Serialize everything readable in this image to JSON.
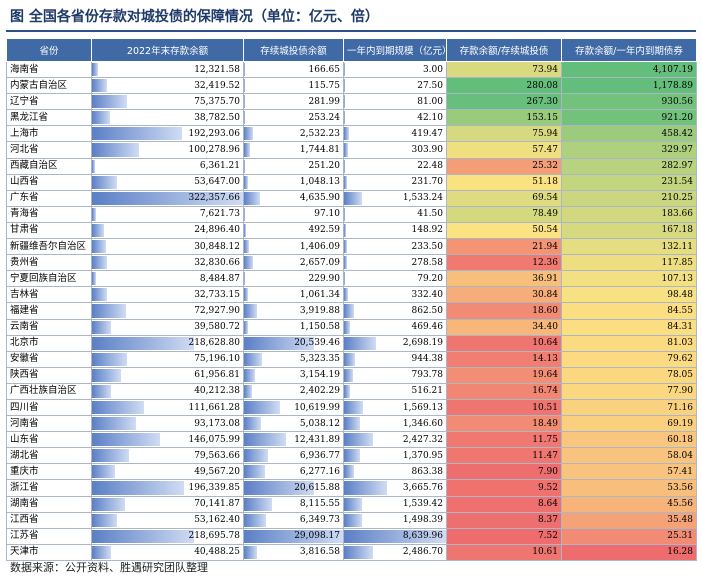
{
  "title": "图  全国各省份存款对城投债的保障情况（单位：亿元、倍）",
  "source": "数据来源：公开资料、胜遇研究团队整理",
  "headers": [
    "省份",
    "2022年末存款余额",
    "存续城投债余额",
    "一年内到期规模（亿元）",
    "存款余额/存续城投债",
    "存款余额/一年内到期债券"
  ],
  "rows": [
    {
      "province": "海南省",
      "deposit": "12,321.58",
      "debt": "166.65",
      "due": "3.00",
      "ratio1": "73.94",
      "ratio2": "4,107.19",
      "d": 12321.58,
      "b": 166.65,
      "u": 3.0,
      "r1": 73.94,
      "r2": 4107.19
    },
    {
      "province": "内蒙古自治区",
      "deposit": "32,419.52",
      "debt": "115.75",
      "due": "27.50",
      "ratio1": "280.08",
      "ratio2": "1,178.89",
      "d": 32419.52,
      "b": 115.75,
      "u": 27.5,
      "r1": 280.08,
      "r2": 1178.89
    },
    {
      "province": "辽宁省",
      "deposit": "75,375.70",
      "debt": "281.99",
      "due": "81.00",
      "ratio1": "267.30",
      "ratio2": "930.56",
      "d": 75375.7,
      "b": 281.99,
      "u": 81.0,
      "r1": 267.3,
      "r2": 930.56
    },
    {
      "province": "黑龙江省",
      "deposit": "38,782.50",
      "debt": "253.24",
      "due": "42.10",
      "ratio1": "153.15",
      "ratio2": "921.20",
      "d": 38782.5,
      "b": 253.24,
      "u": 42.1,
      "r1": 153.15,
      "r2": 921.2
    },
    {
      "province": "上海市",
      "deposit": "192,293.06",
      "debt": "2,532.23",
      "due": "419.47",
      "ratio1": "75.94",
      "ratio2": "458.42",
      "d": 192293.06,
      "b": 2532.23,
      "u": 419.47,
      "r1": 75.94,
      "r2": 458.42
    },
    {
      "province": "河北省",
      "deposit": "100,278.96",
      "debt": "1,744.81",
      "due": "303.90",
      "ratio1": "57.47",
      "ratio2": "329.97",
      "d": 100278.96,
      "b": 1744.81,
      "u": 303.9,
      "r1": 57.47,
      "r2": 329.97
    },
    {
      "province": "西藏自治区",
      "deposit": "6,361.21",
      "debt": "251.20",
      "due": "22.48",
      "ratio1": "25.32",
      "ratio2": "282.97",
      "d": 6361.21,
      "b": 251.2,
      "u": 22.48,
      "r1": 25.32,
      "r2": 282.97
    },
    {
      "province": "山西省",
      "deposit": "53,647.00",
      "debt": "1,048.13",
      "due": "231.70",
      "ratio1": "51.18",
      "ratio2": "231.54",
      "d": 53647.0,
      "b": 1048.13,
      "u": 231.7,
      "r1": 51.18,
      "r2": 231.54
    },
    {
      "province": "广东省",
      "deposit": "322,357.66",
      "debt": "4,635.90",
      "due": "1,533.24",
      "ratio1": "69.54",
      "ratio2": "210.25",
      "d": 322357.66,
      "b": 4635.9,
      "u": 1533.24,
      "r1": 69.54,
      "r2": 210.25
    },
    {
      "province": "青海省",
      "deposit": "7,621.73",
      "debt": "97.10",
      "due": "41.50",
      "ratio1": "78.49",
      "ratio2": "183.66",
      "d": 7621.73,
      "b": 97.1,
      "u": 41.5,
      "r1": 78.49,
      "r2": 183.66
    },
    {
      "province": "甘肃省",
      "deposit": "24,896.40",
      "debt": "492.59",
      "due": "148.92",
      "ratio1": "50.54",
      "ratio2": "167.18",
      "d": 24896.4,
      "b": 492.59,
      "u": 148.92,
      "r1": 50.54,
      "r2": 167.18
    },
    {
      "province": "新疆维吾尔自治区",
      "deposit": "30,848.12",
      "debt": "1,406.09",
      "due": "233.50",
      "ratio1": "21.94",
      "ratio2": "132.11",
      "d": 30848.12,
      "b": 1406.09,
      "u": 233.5,
      "r1": 21.94,
      "r2": 132.11
    },
    {
      "province": "贵州省",
      "deposit": "32,830.66",
      "debt": "2,657.09",
      "due": "278.58",
      "ratio1": "12.36",
      "ratio2": "117.85",
      "d": 32830.66,
      "b": 2657.09,
      "u": 278.58,
      "r1": 12.36,
      "r2": 117.85
    },
    {
      "province": "宁夏回族自治区",
      "deposit": "8,484.87",
      "debt": "229.90",
      "due": "79.20",
      "ratio1": "36.91",
      "ratio2": "107.13",
      "d": 8484.87,
      "b": 229.9,
      "u": 79.2,
      "r1": 36.91,
      "r2": 107.13
    },
    {
      "province": "吉林省",
      "deposit": "32,733.15",
      "debt": "1,061.34",
      "due": "332.40",
      "ratio1": "30.84",
      "ratio2": "98.48",
      "d": 32733.15,
      "b": 1061.34,
      "u": 332.4,
      "r1": 30.84,
      "r2": 98.48
    },
    {
      "province": "福建省",
      "deposit": "72,927.90",
      "debt": "3,919.88",
      "due": "862.50",
      "ratio1": "18.60",
      "ratio2": "84.55",
      "d": 72927.9,
      "b": 3919.88,
      "u": 862.5,
      "r1": 18.6,
      "r2": 84.55
    },
    {
      "province": "云南省",
      "deposit": "39,580.72",
      "debt": "1,150.58",
      "due": "469.46",
      "ratio1": "34.40",
      "ratio2": "84.31",
      "d": 39580.72,
      "b": 1150.58,
      "u": 469.46,
      "r1": 34.4,
      "r2": 84.31
    },
    {
      "province": "北京市",
      "deposit": "218,628.80",
      "debt": "20,539.46",
      "due": "2,698.19",
      "ratio1": "10.64",
      "ratio2": "81.03",
      "d": 218628.8,
      "b": 20539.46,
      "u": 2698.19,
      "r1": 10.64,
      "r2": 81.03
    },
    {
      "province": "安徽省",
      "deposit": "75,196.10",
      "debt": "5,323.35",
      "due": "944.38",
      "ratio1": "14.13",
      "ratio2": "79.62",
      "d": 75196.1,
      "b": 5323.35,
      "u": 944.38,
      "r1": 14.13,
      "r2": 79.62
    },
    {
      "province": "陕西省",
      "deposit": "61,956.81",
      "debt": "3,154.19",
      "due": "793.78",
      "ratio1": "19.64",
      "ratio2": "78.05",
      "d": 61956.81,
      "b": 3154.19,
      "u": 793.78,
      "r1": 19.64,
      "r2": 78.05
    },
    {
      "province": "广西壮族自治区",
      "deposit": "40,212.38",
      "debt": "2,402.29",
      "due": "516.21",
      "ratio1": "16.74",
      "ratio2": "77.90",
      "d": 40212.38,
      "b": 2402.29,
      "u": 516.21,
      "r1": 16.74,
      "r2": 77.9
    },
    {
      "province": "四川省",
      "deposit": "111,661.28",
      "debt": "10,619.99",
      "due": "1,569.13",
      "ratio1": "10.51",
      "ratio2": "71.16",
      "d": 111661.28,
      "b": 10619.99,
      "u": 1569.13,
      "r1": 10.51,
      "r2": 71.16
    },
    {
      "province": "河南省",
      "deposit": "93,173.08",
      "debt": "5,038.12",
      "due": "1,346.60",
      "ratio1": "18.49",
      "ratio2": "69.19",
      "d": 93173.08,
      "b": 5038.12,
      "u": 1346.6,
      "r1": 18.49,
      "r2": 69.19
    },
    {
      "province": "山东省",
      "deposit": "146,075.99",
      "debt": "12,431.89",
      "due": "2,427.32",
      "ratio1": "11.75",
      "ratio2": "60.18",
      "d": 146075.99,
      "b": 12431.89,
      "u": 2427.32,
      "r1": 11.75,
      "r2": 60.18
    },
    {
      "province": "湖北省",
      "deposit": "79,563.66",
      "debt": "6,936.77",
      "due": "1,370.95",
      "ratio1": "11.47",
      "ratio2": "58.04",
      "d": 79563.66,
      "b": 6936.77,
      "u": 1370.95,
      "r1": 11.47,
      "r2": 58.04
    },
    {
      "province": "重庆市",
      "deposit": "49,567.20",
      "debt": "6,277.16",
      "due": "863.38",
      "ratio1": "7.90",
      "ratio2": "57.41",
      "d": 49567.2,
      "b": 6277.16,
      "u": 863.38,
      "r1": 7.9,
      "r2": 57.41
    },
    {
      "province": "浙江省",
      "deposit": "196,339.85",
      "debt": "20,615.88",
      "due": "3,665.76",
      "ratio1": "9.52",
      "ratio2": "53.56",
      "d": 196339.85,
      "b": 20615.88,
      "u": 3665.76,
      "r1": 9.52,
      "r2": 53.56
    },
    {
      "province": "湖南省",
      "deposit": "70,141.87",
      "debt": "8,115.55",
      "due": "1,539.42",
      "ratio1": "8.64",
      "ratio2": "45.56",
      "d": 70141.87,
      "b": 8115.55,
      "u": 1539.42,
      "r1": 8.64,
      "r2": 45.56
    },
    {
      "province": "江西省",
      "deposit": "53,162.40",
      "debt": "6,349.73",
      "due": "1,498.39",
      "ratio1": "8.37",
      "ratio2": "35.48",
      "d": 53162.4,
      "b": 6349.73,
      "u": 1498.39,
      "r1": 8.37,
      "r2": 35.48
    },
    {
      "province": "江苏省",
      "deposit": "218,695.78",
      "debt": "29,098.17",
      "due": "8,639.96",
      "ratio1": "7.52",
      "ratio2": "25.31",
      "d": 218695.78,
      "b": 29098.17,
      "u": 8639.96,
      "r1": 7.52,
      "r2": 25.31
    },
    {
      "province": "天津市",
      "deposit": "40,488.25",
      "debt": "3,816.58",
      "due": "2,486.70",
      "ratio1": "10.61",
      "ratio2": "16.28",
      "d": 40488.25,
      "b": 3816.58,
      "u": 2486.7,
      "r1": 10.61,
      "r2": 16.28
    }
  ]
}
